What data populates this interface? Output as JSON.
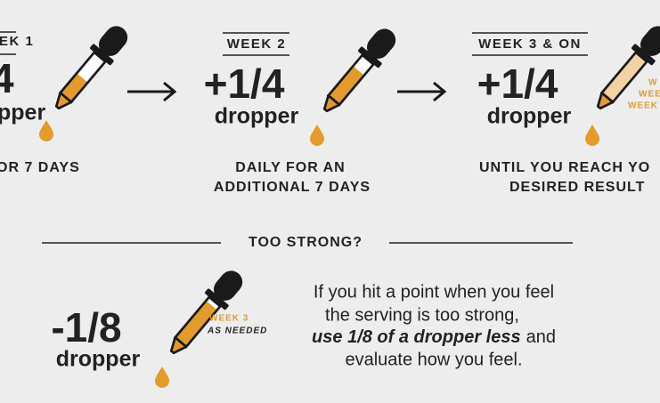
{
  "steps": [
    {
      "heading": "EK 1",
      "amount": "4",
      "unit": "pper",
      "caption": [
        "OR 7 DAYS"
      ]
    },
    {
      "heading": "WEEK 2",
      "amount": "+1/4",
      "unit": "dropper",
      "caption": [
        "DAILY FOR AN",
        "ADDITIONAL 7 DAYS"
      ]
    },
    {
      "heading": "WEEK 3 & ON",
      "amount": "+1/4",
      "unit": "dropper",
      "dropper_labels": [
        "W",
        "WEE",
        "WEEK"
      ],
      "caption": [
        "UNTIL YOU REACH YO",
        "DESIRED RESULT"
      ]
    }
  ],
  "too_strong": {
    "heading": "TOO STRONG?",
    "amount": "-1/8",
    "unit": "dropper",
    "dropper_labels": [
      "WEEK 3",
      "AS NEEDED"
    ],
    "text": {
      "line1": "If you hit a point when you feel",
      "line2": "the serving is too strong,",
      "line3_emphasis": "use 1/8 of a dropper less",
      "line3_rest": "and",
      "line4": "evaluate how you feel."
    }
  }
}
